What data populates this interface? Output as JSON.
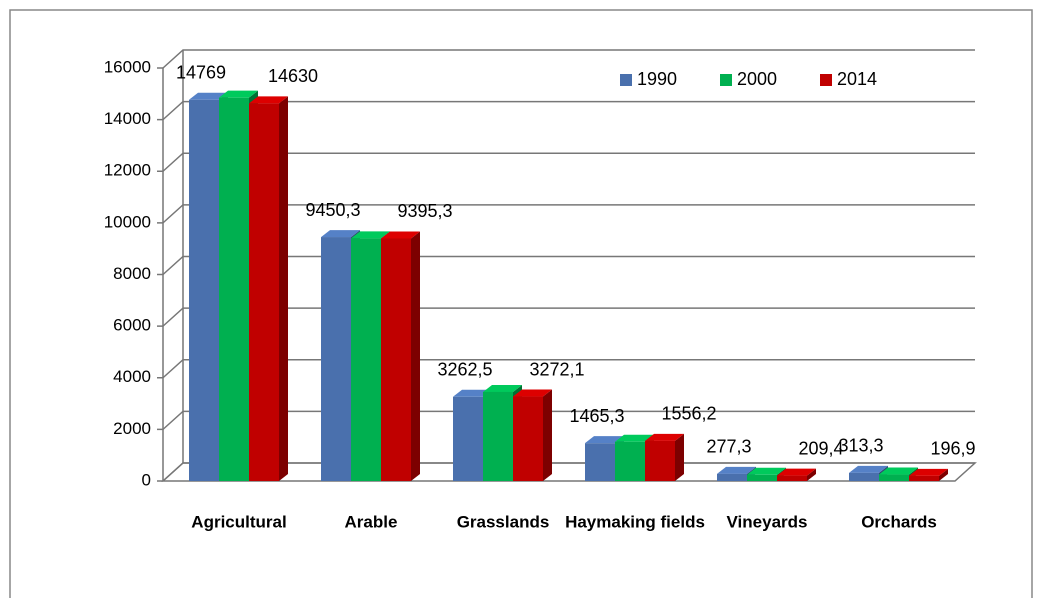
{
  "chart_data": {
    "type": "bar3d",
    "categories": [
      "Agricultural",
      "Arable",
      "Grasslands",
      "Haymaking  fields",
      "Vineyards",
      "Orchards"
    ],
    "series": [
      {
        "name": "1990",
        "color": "#4a70ad",
        "values": [
          14769,
          9450.3,
          3262.5,
          1465.3,
          277.3,
          313.3
        ],
        "value_labels": [
          "14769",
          "9450,3",
          "3262,5",
          "1465,3",
          "277,3",
          "313,3"
        ]
      },
      {
        "name": "2000",
        "color": "#00b050",
        "values": [
          14850,
          9400,
          3450,
          1520,
          240,
          250
        ]
      },
      {
        "name": "2014",
        "color": "#c00000",
        "values": [
          14630,
          9395.3,
          3272.1,
          1556.2,
          209.4,
          196.9
        ],
        "value_labels": [
          "14630",
          "9395,3",
          "3272,1",
          "1556,2",
          "209,4",
          "196,9"
        ]
      }
    ],
    "ylim": [
      0,
      16000
    ],
    "yticks": [
      0,
      2000,
      4000,
      6000,
      8000,
      10000,
      12000,
      14000,
      16000
    ],
    "grid": true,
    "legend": "top-right"
  }
}
